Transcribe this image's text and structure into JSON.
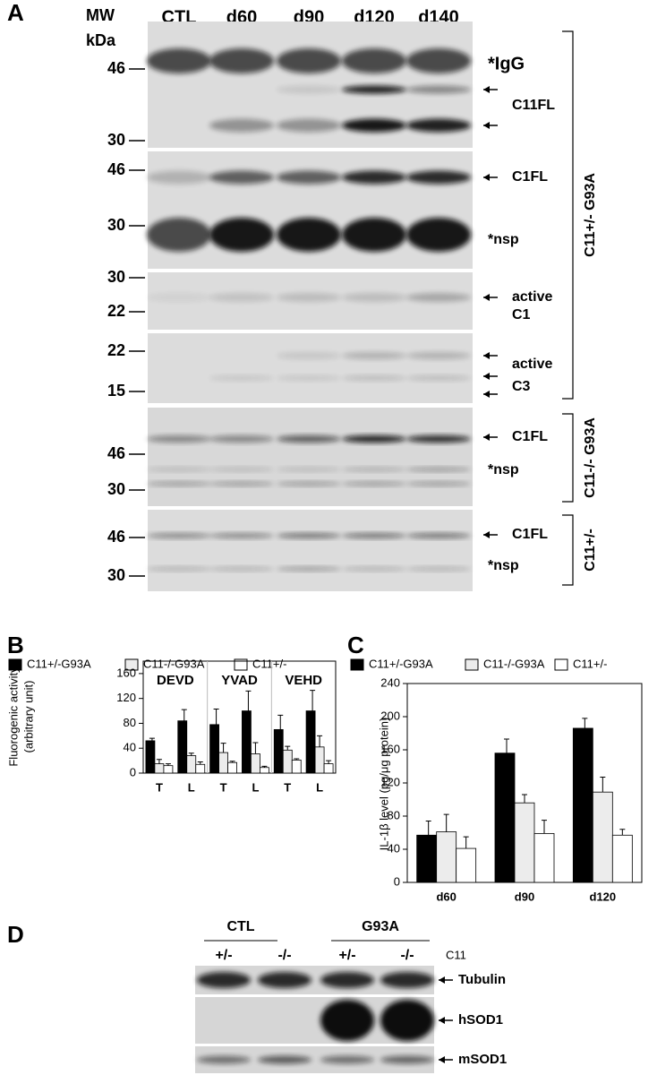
{
  "panel_a": {
    "label": "A",
    "mw_header": [
      "MW",
      "kDa"
    ],
    "lanes": [
      "CTL",
      "d60",
      "d90",
      "d120",
      "d140"
    ],
    "strips": [
      {
        "markers": [
          46,
          30
        ],
        "labels": [
          "*IgG",
          "C11FL"
        ]
      },
      {
        "markers": [
          46,
          30
        ],
        "labels": [
          "C1FL",
          "*nsp"
        ]
      },
      {
        "markers": [
          30,
          22
        ],
        "labels": [
          "active",
          "C1"
        ]
      },
      {
        "markers": [
          22,
          15
        ],
        "labels": [
          "active",
          "C3"
        ]
      },
      {
        "markers": [
          46,
          30
        ],
        "labels": [
          "C1FL",
          "*nsp"
        ]
      },
      {
        "markers": [
          46,
          30
        ],
        "labels": [
          "C1FL",
          "*nsp"
        ]
      }
    ],
    "groups": [
      "C11+/- G93A",
      "C11-/- G93A",
      "C11+/-"
    ]
  },
  "chart_data": [
    {
      "type": "bar",
      "panel_label": "B",
      "ylabel": [
        "Fluorogenic activity",
        "(arbitrary unit)"
      ],
      "groups": [
        "DEVD",
        "YVAD",
        "VEHD"
      ],
      "categories": [
        "T",
        "L",
        "T",
        "L",
        "T",
        "L"
      ],
      "series": [
        {
          "name": "C11+/-G93A",
          "color": "#000000",
          "values": [
            52,
            84,
            78,
            100,
            70,
            100
          ],
          "errors": [
            4,
            18,
            25,
            32,
            23,
            33
          ]
        },
        {
          "name": "C11-/-G93A",
          "color": "#ececec",
          "values": [
            15,
            28,
            33,
            31,
            37,
            42
          ],
          "errors": [
            7,
            4,
            15,
            18,
            6,
            18
          ]
        },
        {
          "name": "C11+/-",
          "color": "#ffffff",
          "values": [
            12,
            14,
            17,
            9,
            21,
            15
          ],
          "errors": [
            3,
            4,
            2,
            2,
            2,
            5
          ]
        }
      ],
      "ylim": [
        0,
        180
      ],
      "yticks": [
        0,
        40,
        80,
        120,
        160
      ]
    },
    {
      "type": "bar",
      "panel_label": "C",
      "ylabel": [
        "IL-1β level (pg/μg protein)"
      ],
      "categories": [
        "d60",
        "d90",
        "d120"
      ],
      "series": [
        {
          "name": "C11+/-G93A",
          "color": "#000000",
          "values": [
            57,
            156,
            186
          ],
          "errors": [
            17,
            17,
            12
          ]
        },
        {
          "name": "C11-/-G93A",
          "color": "#ececec",
          "values": [
            61,
            96,
            109
          ],
          "errors": [
            21,
            10,
            18
          ]
        },
        {
          "name": "C11+/-",
          "color": "#ffffff",
          "values": [
            41,
            59,
            57
          ],
          "errors": [
            14,
            16,
            7
          ]
        }
      ],
      "ylim": [
        0,
        240
      ],
      "yticks": [
        0,
        40,
        80,
        120,
        160,
        200,
        240
      ]
    }
  ],
  "panel_d": {
    "label": "D",
    "groups": [
      "CTL",
      "G93A"
    ],
    "genotypes": [
      "+/-",
      "-/-",
      "+/-",
      "-/-"
    ],
    "row_header": "C11",
    "rows": [
      "Tubulin",
      "hSOD1",
      "mSOD1"
    ]
  }
}
